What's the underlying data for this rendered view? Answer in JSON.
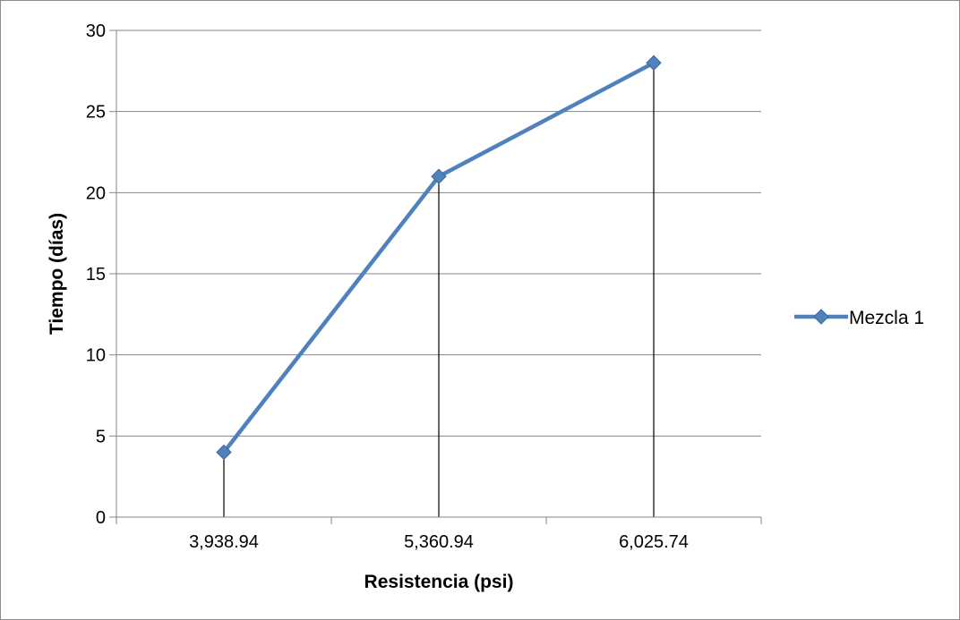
{
  "chart_data": {
    "type": "line",
    "title": "",
    "xlabel": "Resistencia (psi)",
    "ylabel": "Tiempo (días)",
    "categories": [
      "3,938.94",
      "5,360.94",
      "6,025.74"
    ],
    "series": [
      {
        "name": "Mezcla 1",
        "values": [
          4,
          21,
          28
        ],
        "color": "#4f81bd"
      }
    ],
    "ylim": [
      0,
      30
    ],
    "yticks": [
      "0",
      "5",
      "10",
      "15",
      "20",
      "25",
      "30"
    ],
    "drop_lines": true,
    "grid": "horizontal",
    "legend_position": "right",
    "colors": {
      "series": "#4f81bd",
      "grid": "#868686",
      "drop_line": "#000000"
    }
  }
}
